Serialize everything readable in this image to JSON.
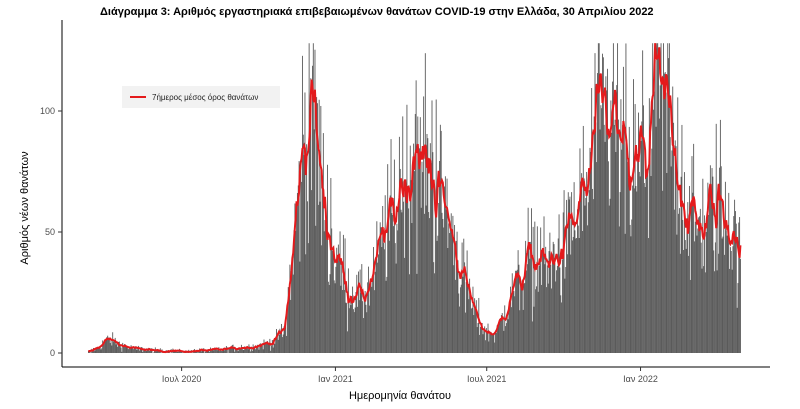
{
  "chart_data": {
    "type": "bar",
    "title": "Διάγραμμα 3: Αριθμός εργαστηριακά επιβεβαιωμένων θανάτων COVID-19 στην Ελλάδα, 30 Απριλίου 2022",
    "xlabel": "Ημερομηνία θανάτου",
    "ylabel": "Αριθμός νέων θανάτων",
    "x_range": [
      "2020-03-11",
      "2022-04-30"
    ],
    "ylim": [
      0,
      130
    ],
    "x_ticks": [
      {
        "date": "2020-07-01",
        "label": "Ιουλ 2020"
      },
      {
        "date": "2021-01-01",
        "label": "Ιαν 2021"
      },
      {
        "date": "2021-07-01",
        "label": "Ιουλ 2021"
      },
      {
        "date": "2022-01-01",
        "label": "Ιαν 2022"
      }
    ],
    "y_ticks": [
      0,
      50,
      100
    ],
    "grid": false,
    "legend": {
      "position": "top-left",
      "entries": [
        {
          "label": "7ήμερος μέσος όρος θανάτων",
          "color": "#e41a1c"
        }
      ]
    },
    "series": [
      {
        "kind": "bar",
        "color": "#5a5a5a",
        "anchors": [
          [
            "2020-03-11",
            0
          ],
          [
            "2020-03-25",
            3
          ],
          [
            "2020-04-05",
            6
          ],
          [
            "2020-04-15",
            4
          ],
          [
            "2020-05-01",
            2
          ],
          [
            "2020-06-01",
            1
          ],
          [
            "2020-07-01",
            0.5
          ],
          [
            "2020-08-01",
            1
          ],
          [
            "2020-09-01",
            2
          ],
          [
            "2020-10-01",
            3
          ],
          [
            "2020-10-20",
            5
          ],
          [
            "2020-11-01",
            10
          ],
          [
            "2020-11-15",
            55
          ],
          [
            "2020-11-25",
            95
          ],
          [
            "2020-12-01",
            102
          ],
          [
            "2020-12-08",
            90
          ],
          [
            "2020-12-20",
            60
          ],
          [
            "2021-01-01",
            40
          ],
          [
            "2021-01-15",
            28
          ],
          [
            "2021-02-01",
            22
          ],
          [
            "2021-02-15",
            30
          ],
          [
            "2021-03-01",
            50
          ],
          [
            "2021-03-20",
            68
          ],
          [
            "2021-04-05",
            80
          ],
          [
            "2021-04-20",
            78
          ],
          [
            "2021-05-01",
            74
          ],
          [
            "2021-05-15",
            55
          ],
          [
            "2021-06-01",
            35
          ],
          [
            "2021-06-15",
            18
          ],
          [
            "2021-07-01",
            8
          ],
          [
            "2021-07-15",
            10
          ],
          [
            "2021-08-01",
            25
          ],
          [
            "2021-08-15",
            38
          ],
          [
            "2021-09-01",
            40
          ],
          [
            "2021-09-15",
            36
          ],
          [
            "2021-10-01",
            42
          ],
          [
            "2021-10-20",
            60
          ],
          [
            "2021-11-10",
            85
          ],
          [
            "2021-11-25",
            95
          ],
          [
            "2021-12-05",
            88
          ],
          [
            "2021-12-20",
            72
          ],
          [
            "2022-01-01",
            75
          ],
          [
            "2022-01-10",
            95
          ],
          [
            "2022-01-20",
            104
          ],
          [
            "2022-02-01",
            98
          ],
          [
            "2022-02-15",
            75
          ],
          [
            "2022-03-01",
            57
          ],
          [
            "2022-03-15",
            48
          ],
          [
            "2022-03-25",
            58
          ],
          [
            "2022-04-05",
            64
          ],
          [
            "2022-04-15",
            58
          ],
          [
            "2022-04-30",
            36
          ]
        ]
      },
      {
        "kind": "line",
        "name": "7ήμερος μέσος όρος θανάτων",
        "color": "#e41a1c"
      }
    ]
  }
}
